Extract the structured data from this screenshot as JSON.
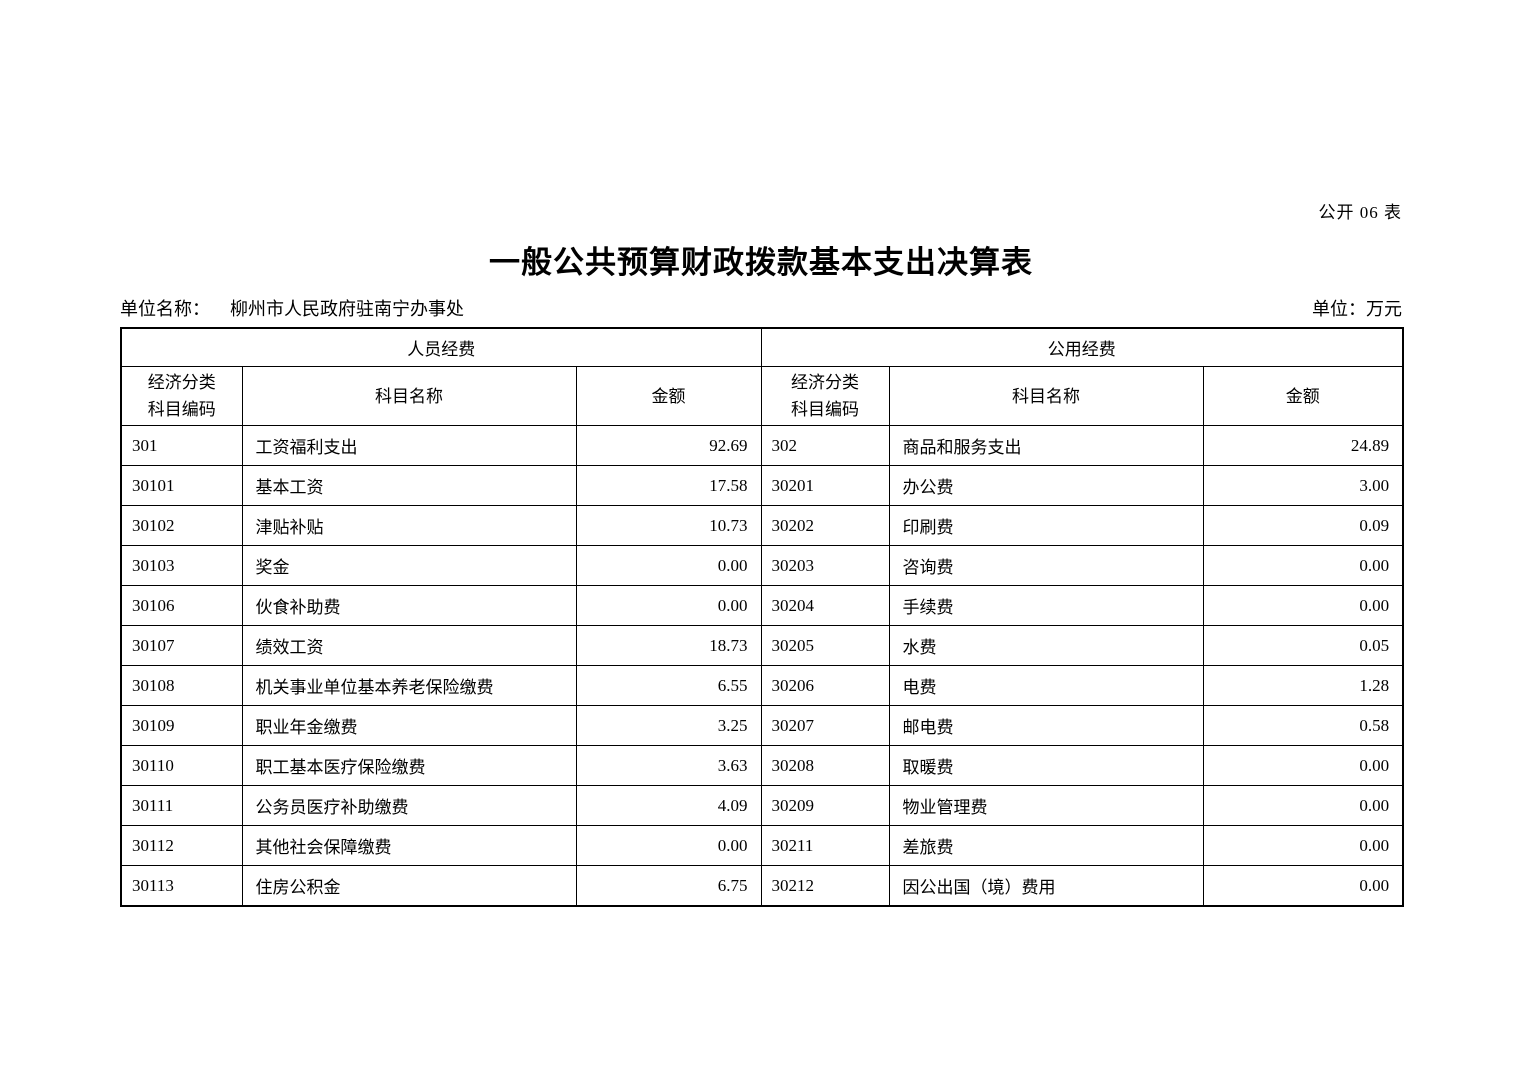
{
  "header": {
    "form_number": "公开 06 表",
    "title": "一般公共预算财政拨款基本支出决算表",
    "unit_name_label": "单位名称：",
    "unit_name": "柳州市人民政府驻南宁办事处",
    "unit_measure": "单位：万元"
  },
  "table": {
    "columns": {
      "code_line1": "经济分类",
      "code_line2": "科目编码",
      "name": "科目名称",
      "amount": "金额"
    },
    "left": {
      "group_header": "人员经费",
      "rows": [
        {
          "code": "301",
          "name": "工资福利支出",
          "amount": "92.69"
        },
        {
          "code": "30101",
          "name": "基本工资",
          "amount": "17.58"
        },
        {
          "code": "30102",
          "name": "津贴补贴",
          "amount": "10.73"
        },
        {
          "code": "30103",
          "name": "奖金",
          "amount": "0.00"
        },
        {
          "code": "30106",
          "name": "伙食补助费",
          "amount": "0.00"
        },
        {
          "code": "30107",
          "name": "绩效工资",
          "amount": "18.73"
        },
        {
          "code": "30108",
          "name": "机关事业单位基本养老保险缴费",
          "amount": "6.55"
        },
        {
          "code": "30109",
          "name": "职业年金缴费",
          "amount": "3.25"
        },
        {
          "code": "30110",
          "name": "职工基本医疗保险缴费",
          "amount": "3.63"
        },
        {
          "code": "30111",
          "name": "公务员医疗补助缴费",
          "amount": "4.09"
        },
        {
          "code": "30112",
          "name": "其他社会保障缴费",
          "amount": "0.00"
        },
        {
          "code": "30113",
          "name": "住房公积金",
          "amount": "6.75"
        }
      ]
    },
    "right": {
      "group_header": "公用经费",
      "rows": [
        {
          "code": "302",
          "name": "商品和服务支出",
          "amount": "24.89"
        },
        {
          "code": "30201",
          "name": "办公费",
          "amount": "3.00"
        },
        {
          "code": "30202",
          "name": "印刷费",
          "amount": "0.09"
        },
        {
          "code": "30203",
          "name": "咨询费",
          "amount": "0.00"
        },
        {
          "code": "30204",
          "name": "手续费",
          "amount": "0.00"
        },
        {
          "code": "30205",
          "name": "水费",
          "amount": "0.05"
        },
        {
          "code": "30206",
          "name": "电费",
          "amount": "1.28"
        },
        {
          "code": "30207",
          "name": "邮电费",
          "amount": "0.58"
        },
        {
          "code": "30208",
          "name": "取暖费",
          "amount": "0.00"
        },
        {
          "code": "30209",
          "name": "物业管理费",
          "amount": "0.00"
        },
        {
          "code": "30211",
          "name": "差旅费",
          "amount": "0.00"
        },
        {
          "code": "30212",
          "name": "因公出国（境）费用",
          "amount": "0.00"
        }
      ]
    }
  }
}
